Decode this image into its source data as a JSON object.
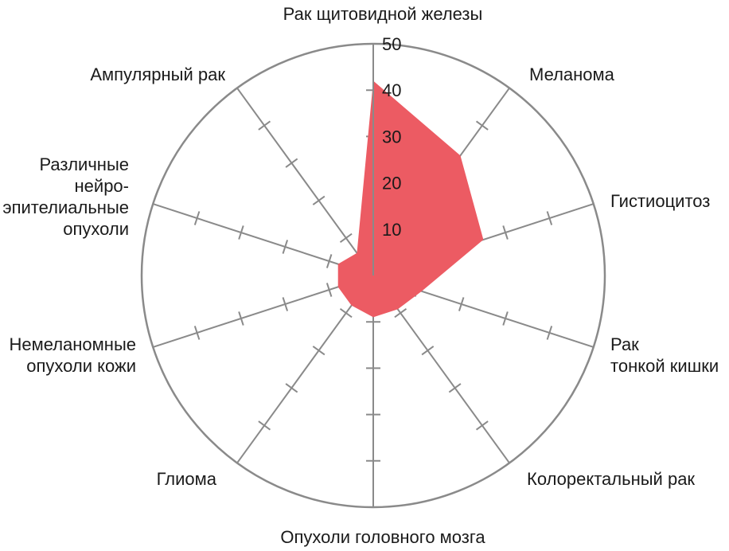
{
  "chart_data": {
    "type": "radar",
    "title": "",
    "categories": [
      [
        "Рак щитовидной железы"
      ],
      [
        "Меланома"
      ],
      [
        "Гистиоцитоз"
      ],
      [
        "Рак",
        "тонкой кишки"
      ],
      [
        "Колоректальный рак"
      ],
      [
        "Опухоли головного мозга"
      ],
      [
        "Глиома"
      ],
      [
        "Немеланомные",
        "опухоли кожи"
      ],
      [
        "Различные",
        "нейро-",
        "эпителиальные",
        "опухоли"
      ],
      [
        "Ампулярный рак"
      ]
    ],
    "series": [
      {
        "values": [
          42,
          32,
          25,
          11,
          9,
          9,
          8,
          8,
          8,
          6
        ]
      }
    ],
    "rlim": [
      0,
      50
    ],
    "ticks": [
      10,
      20,
      30,
      40,
      50
    ],
    "tick_labels": [
      "10",
      "20",
      "30",
      "40",
      "50"
    ],
    "grid": true,
    "colors": {
      "fill": "#ec5b63",
      "axis": "#8a8a8a",
      "text": "#1a1a1a"
    }
  }
}
